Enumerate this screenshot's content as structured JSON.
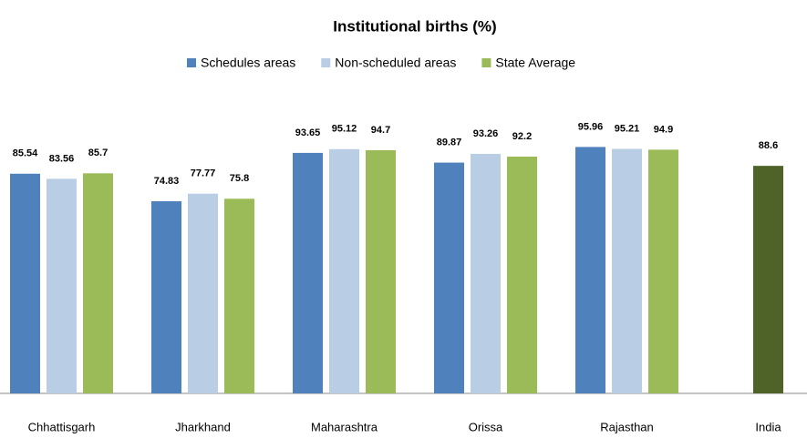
{
  "chart_data": {
    "type": "bar",
    "title": "Institutional births (%)",
    "categories": [
      "Chhattisgarh",
      "Jharkhand",
      "Maharashtra",
      "Orissa",
      "Rajasthan",
      "India"
    ],
    "series": [
      {
        "name": "Schedules areas",
        "color": "#4f81bd",
        "values": [
          85.54,
          74.83,
          93.65,
          89.87,
          95.96,
          null
        ]
      },
      {
        "name": "Non-scheduled areas",
        "color": "#b9cde5",
        "values": [
          83.56,
          77.77,
          95.12,
          93.26,
          95.21,
          null
        ]
      },
      {
        "name": "State Average",
        "color": "#9bbb59",
        "values": [
          85.7,
          75.8,
          94.7,
          92.2,
          94.9,
          88.6
        ],
        "colors": [
          "#9bbb59",
          "#9bbb59",
          "#9bbb59",
          "#9bbb59",
          "#9bbb59",
          "#4f6228"
        ]
      }
    ],
    "ylim": [
      0,
      100
    ],
    "legend": "top"
  }
}
